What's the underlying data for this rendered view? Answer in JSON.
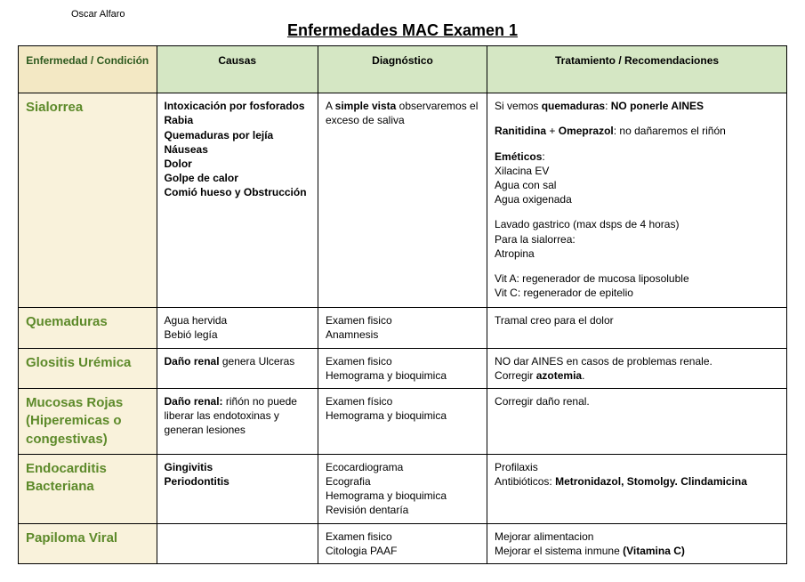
{
  "author": "Oscar Alfaro",
  "title": "Enfermedades MAC Examen 1",
  "headers": {
    "disease": "Enfermedad / Condición",
    "causes": "Causas",
    "diagnosis": "Diagnóstico",
    "treatment": "Tratamiento / Recomendaciones"
  },
  "rows": [
    {
      "disease": "Sialorrea",
      "causes_html": "<b>Intoxicación por fosforados</b><br><b>Rabia</b><br><b>Quemaduras por lejía</b><br><b>Náuseas</b><br><b>Dolor</b><br><b>Golpe de calor</b><br><b>Comió hueso y Obstrucción</b>",
      "diagnosis_html": "A <b>simple vista</b> observaremos el exceso de saliva",
      "treatment_html": "<div class='block'>Si vemos <b>quemaduras</b>: <b>NO ponerle AINES</b></div><div class='block'><b>Ranitidina</b> + <b>Omeprazol</b>: no dañaremos el riñón</div><div class='block'><b>Eméticos</b>:<br>Xilacina EV<br>Agua con sal<br>Agua oxigenada</div><div class='block'>Lavado gastrico (max dsps de 4 horas)<br>Para la sialorrea:<br>Atropina</div><div class='para'>Vit A: regenerador de mucosa liposoluble<br>Vit C: regenerador de epitelio</div>"
    },
    {
      "disease": "Quemaduras",
      "causes_html": "Agua hervida<br>Bebió legía",
      "diagnosis_html": "Examen fisico<br>Anamnesis",
      "treatment_html": "Tramal creo para el dolor"
    },
    {
      "disease": "Glositis Urémica",
      "causes_html": "<b>Daño renal</b> genera Ulceras",
      "diagnosis_html": "Examen fisico<br>Hemograma y bioquimica",
      "treatment_html": "NO dar AINES en casos de problemas renale.<br>Corregir <b>azotemia</b>."
    },
    {
      "disease": "Mucosas Rojas (Hiperemicas o congestivas)",
      "causes_html": "<b>Daño renal:</b> riñón no puede liberar las endotoxinas y generan lesiones",
      "diagnosis_html": "Examen físico<br>Hemograma y bioquimica",
      "treatment_html": "Corregir daño renal."
    },
    {
      "disease": "Endocarditis Bacteriana",
      "causes_html": "<b>Gingivitis</b><br><b>Periodontitis</b>",
      "diagnosis_html": "Ecocardiograma<br>Ecografia<br>Hemograma y bioquimica<br>Revisión dentaría",
      "treatment_html": "Profilaxis<br>Antibióticos: <b>Metronidazol, Stomolgy. Clindamicina</b>"
    },
    {
      "disease": "Papiloma Viral",
      "causes_html": "",
      "diagnosis_html": "Examen fisico<br>Citologia PAAF",
      "treatment_html": "Mejorar alimentacion<br>Mejorar el sistema inmune <b>(Vitamina C)</b>"
    }
  ]
}
